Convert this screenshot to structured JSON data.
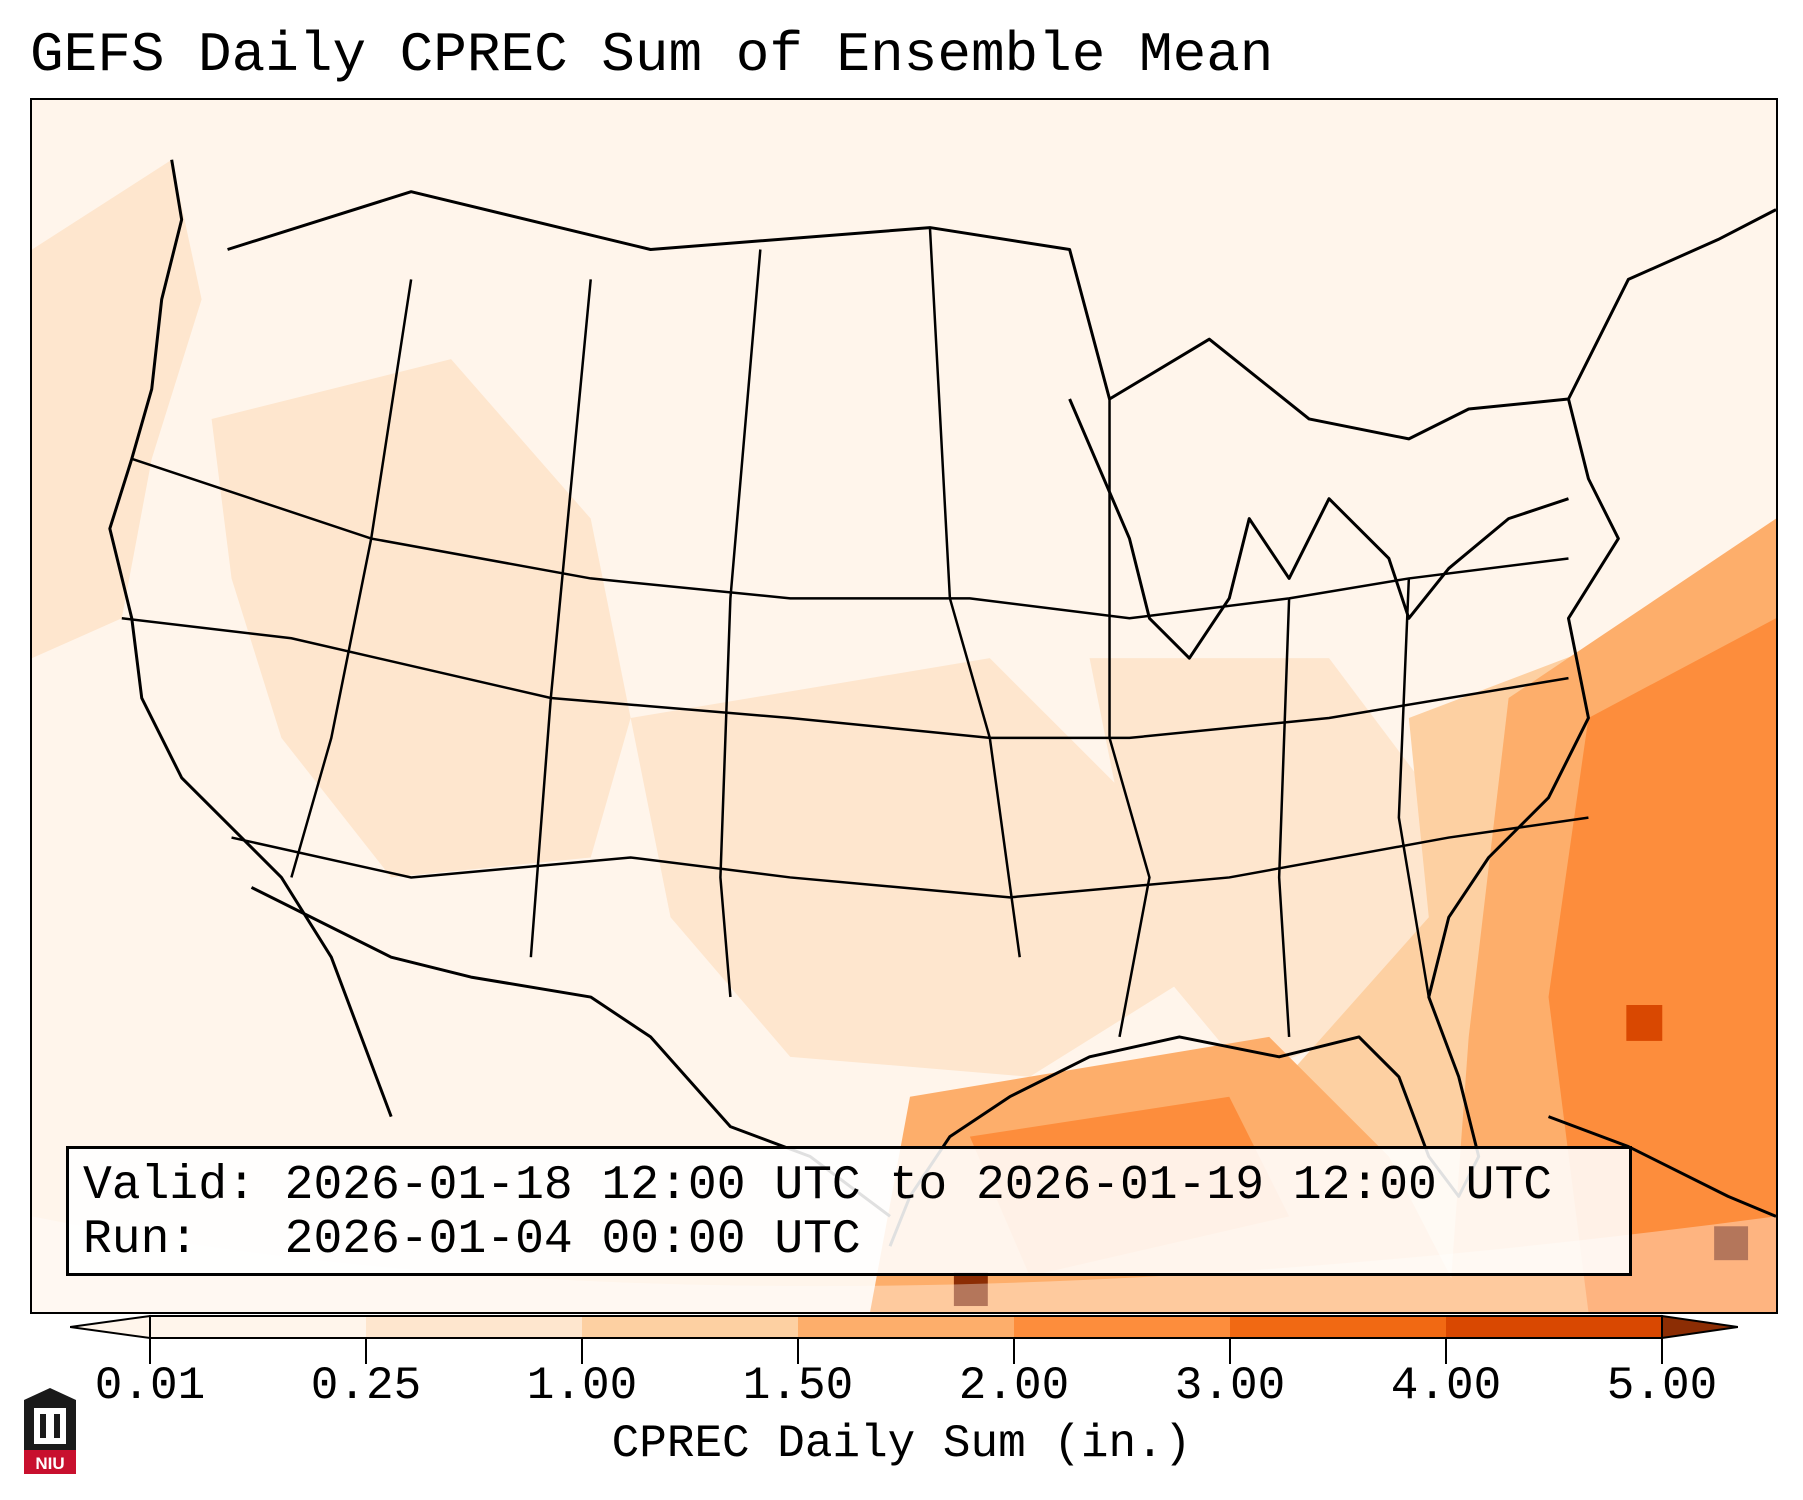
{
  "title": "GEFS Daily CPREC Sum of Ensemble Mean",
  "info": {
    "valid_label": "Valid:",
    "valid_value": "2026-01-18 12:00 UTC to 2026-01-19 12:00 UTC",
    "run_label": "Run:",
    "run_value": "2026-01-04 00:00 UTC"
  },
  "colorbar": {
    "label": "CPREC Daily Sum (in.)",
    "ticks": [
      "0.01",
      "0.25",
      "1.00",
      "1.50",
      "2.00",
      "3.00",
      "4.00",
      "5.00"
    ],
    "colors": [
      "#fff5eb",
      "#fee6ce",
      "#fdd0a2",
      "#fdae6b",
      "#fd8d3c",
      "#f16913",
      "#d94801",
      "#8c2d04"
    ],
    "extend": "both"
  },
  "logo": {
    "text": "NIU",
    "colors": {
      "shield": "#1a1a1a",
      "band": "#c8102e"
    }
  }
}
